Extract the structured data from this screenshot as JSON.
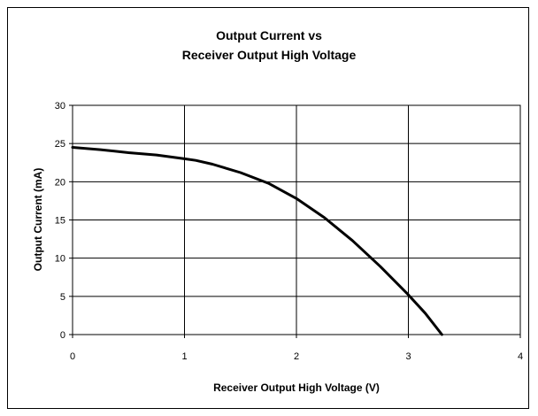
{
  "chart_data": {
    "type": "line",
    "title": "Output Current vs",
    "subtitle": "Receiver Output High Voltage",
    "xlabel": "Receiver Output High Voltage (V)",
    "ylabel": "Output Current (mA)",
    "xlim": [
      0,
      4
    ],
    "ylim": [
      0,
      30
    ],
    "x_ticks": [
      0,
      1,
      2,
      3,
      4
    ],
    "y_ticks": [
      0,
      5,
      10,
      15,
      20,
      25,
      30
    ],
    "grid": true,
    "series": [
      {
        "color": "#000000",
        "x": [
          0,
          0.25,
          0.5,
          0.75,
          1.0,
          1.1,
          1.25,
          1.5,
          1.75,
          2.0,
          2.25,
          2.5,
          2.75,
          3.0,
          3.15,
          3.3
        ],
        "y": [
          24.5,
          24.2,
          23.8,
          23.5,
          23.0,
          22.8,
          22.3,
          21.2,
          19.8,
          17.8,
          15.3,
          12.3,
          8.9,
          5.2,
          2.8,
          0
        ]
      }
    ]
  }
}
